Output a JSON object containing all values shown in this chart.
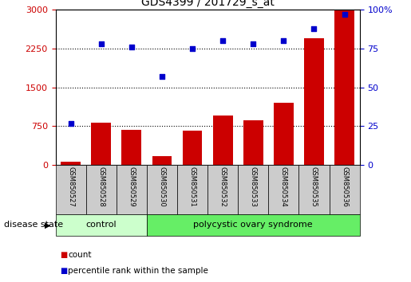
{
  "title": "GDS4399 / 201729_s_at",
  "samples": [
    "GSM850527",
    "GSM850528",
    "GSM850529",
    "GSM850530",
    "GSM850531",
    "GSM850532",
    "GSM850533",
    "GSM850534",
    "GSM850535",
    "GSM850536"
  ],
  "counts": [
    60,
    820,
    680,
    175,
    665,
    950,
    870,
    1200,
    2450,
    3000
  ],
  "percentiles": [
    27,
    78,
    76,
    57,
    75,
    80,
    78,
    80,
    88,
    97
  ],
  "left_ylim": [
    0,
    3000
  ],
  "right_ylim": [
    0,
    100
  ],
  "left_yticks": [
    0,
    750,
    1500,
    2250,
    3000
  ],
  "right_yticks": [
    0,
    25,
    50,
    75,
    100
  ],
  "bar_color": "#cc0000",
  "scatter_color": "#0000cc",
  "n_control": 3,
  "n_poly": 7,
  "control_label": "control",
  "polycystic_label": "polycystic ovary syndrome",
  "disease_state_label": "disease state",
  "legend_count": "count",
  "legend_percentile": "percentile rank within the sample",
  "control_color": "#ccffcc",
  "polycystic_color": "#66ee66",
  "tick_label_area_color": "#cccccc",
  "figsize": [
    5.15,
    3.54
  ],
  "dpi": 100
}
